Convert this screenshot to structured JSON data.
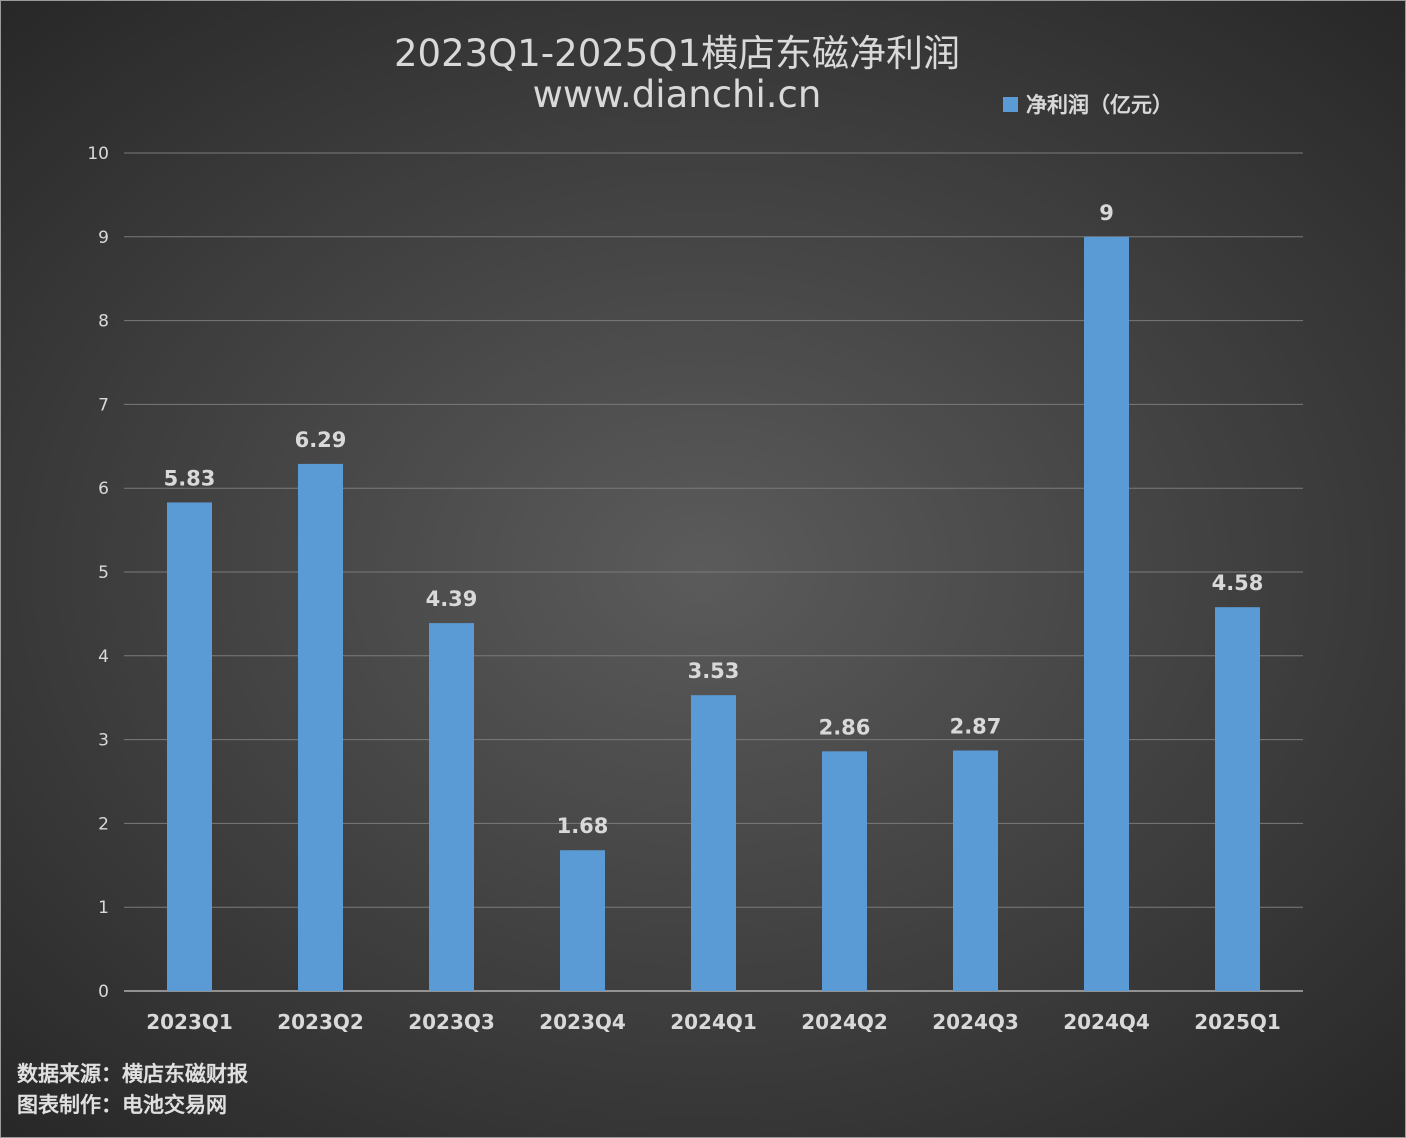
{
  "title": {
    "line1": "2023Q1-2025Q1横店东磁净利润",
    "line2": "www.dianchi.cn"
  },
  "legend": {
    "label": "净利润（亿元）",
    "color": "#5b9bd5"
  },
  "footer": {
    "source": "数据来源：横店东磁财报",
    "maker": "图表制作：电池交易网"
  },
  "colors": {
    "bar": "#5b9bd5",
    "text": "#d9d9d9",
    "grid": "#7a7a7a",
    "axis": "#b0b0b0"
  },
  "chart_data": {
    "type": "bar",
    "categories": [
      "2023Q1",
      "2023Q2",
      "2023Q3",
      "2023Q4",
      "2024Q1",
      "2024Q2",
      "2024Q3",
      "2024Q4",
      "2025Q1"
    ],
    "series": [
      {
        "name": "净利润（亿元）",
        "values": [
          5.83,
          6.29,
          4.39,
          1.68,
          3.53,
          2.86,
          2.87,
          9,
          4.58
        ],
        "labels": [
          "5.83",
          "6.29",
          "4.39",
          "1.68",
          "3.53",
          "2.86",
          "2.87",
          "9",
          "4.58"
        ]
      }
    ],
    "ylim": [
      0,
      10
    ],
    "yticks": [
      "0",
      "1",
      "2",
      "3",
      "4",
      "5",
      "6",
      "7",
      "8",
      "9",
      "10"
    ],
    "grid": true,
    "legend_position": "top-right"
  }
}
